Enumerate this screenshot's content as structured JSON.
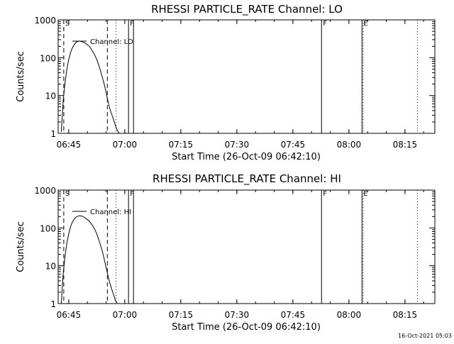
{
  "timestamp": "16-Oct-2021 05:03",
  "chart_data": [
    {
      "type": "line",
      "title": "RHESSI PARTICLE_RATE Channel: LO",
      "xlabel": "Start Time (26-Oct-09 06:42:10)",
      "ylabel": "Counts/sec",
      "y_scale": "log",
      "xlim": [
        "06:42:10",
        "08:23:00"
      ],
      "ylim": [
        1,
        1000
      ],
      "x_ticks": [
        "06:45",
        "07:00",
        "07:15",
        "07:30",
        "07:45",
        "08:00",
        "08:15"
      ],
      "y_ticks": [
        "1",
        "10",
        "100",
        "1000"
      ],
      "legend": "Channel: LO",
      "series": [
        {
          "name": "Channel: LO",
          "x": [
            "06:43:00",
            "06:43:30",
            "06:44:00",
            "06:44:30",
            "06:45:00",
            "06:45:30",
            "06:46:00",
            "06:46:30",
            "06:47:00",
            "06:47:30",
            "06:48:00",
            "06:48:30",
            "06:49:00",
            "06:49:30",
            "06:50:00",
            "06:50:30",
            "06:51:00",
            "06:51:30",
            "06:52:00",
            "06:52:30",
            "06:53:00",
            "06:53:30",
            "06:54:00",
            "06:54:30",
            "06:55:00",
            "06:55:30",
            "06:56:00",
            "06:56:30",
            "06:57:00",
            "06:57:30",
            "06:58:00",
            "06:58:30"
          ],
          "y": [
            1.1,
            7,
            22,
            50,
            90,
            140,
            185,
            225,
            255,
            270,
            275,
            265,
            255,
            240,
            220,
            200,
            170,
            140,
            115,
            90,
            65,
            45,
            30,
            20,
            12,
            7,
            4.5,
            3.2,
            2.3,
            1.6,
            1.2,
            1.0
          ]
        }
      ],
      "markers": [
        {
          "time": "06:43:40",
          "style": "dashed",
          "label": "S"
        },
        {
          "time": "06:55:20",
          "style": "dashed",
          "label": ""
        },
        {
          "time": "06:57:40",
          "style": "dotted",
          "label": ""
        },
        {
          "time": "07:01:00",
          "style": "solid",
          "label": "F"
        },
        {
          "time": "07:02:20",
          "style": "solid",
          "label": ""
        },
        {
          "time": "07:52:40",
          "style": "solid",
          "label": "F"
        },
        {
          "time": "08:03:30",
          "style": "solid",
          "label": "E"
        },
        {
          "time": "08:03:50",
          "style": "dotted",
          "label": ""
        },
        {
          "time": "08:18:20",
          "style": "dotted",
          "label": ""
        }
      ]
    },
    {
      "type": "line",
      "title": "RHESSI PARTICLE_RATE Channel: HI",
      "xlabel": "Start Time (26-Oct-09 06:42:10)",
      "ylabel": "Counts/sec",
      "y_scale": "log",
      "xlim": [
        "06:42:10",
        "08:23:00"
      ],
      "ylim": [
        1,
        1000
      ],
      "x_ticks": [
        "06:45",
        "07:00",
        "07:15",
        "07:30",
        "07:45",
        "08:00",
        "08:15"
      ],
      "y_ticks": [
        "1",
        "10",
        "100",
        "1000"
      ],
      "legend": "Channel: HI",
      "series": [
        {
          "name": "Channel: HI",
          "x": [
            "06:43:00",
            "06:43:30",
            "06:44:00",
            "06:44:30",
            "06:45:00",
            "06:45:30",
            "06:46:00",
            "06:46:30",
            "06:47:00",
            "06:47:30",
            "06:48:00",
            "06:48:30",
            "06:49:00",
            "06:49:30",
            "06:50:00",
            "06:50:30",
            "06:51:00",
            "06:51:30",
            "06:52:00",
            "06:52:30",
            "06:53:00",
            "06:53:30",
            "06:54:00",
            "06:54:30",
            "06:55:00",
            "06:55:30",
            "06:56:00",
            "06:56:30",
            "06:57:00",
            "06:57:30",
            "06:58:00"
          ],
          "y": [
            1.0,
            6,
            18,
            40,
            70,
            110,
            145,
            175,
            195,
            205,
            210,
            205,
            195,
            180,
            165,
            150,
            130,
            110,
            90,
            70,
            50,
            35,
            24,
            15,
            9,
            5.5,
            3.5,
            2.4,
            1.7,
            1.2,
            1.0
          ]
        }
      ],
      "markers": [
        {
          "time": "06:43:40",
          "style": "dashed",
          "label": "S"
        },
        {
          "time": "06:55:20",
          "style": "dashed",
          "label": ""
        },
        {
          "time": "06:57:40",
          "style": "dotted",
          "label": ""
        },
        {
          "time": "07:01:00",
          "style": "solid",
          "label": "F"
        },
        {
          "time": "07:02:20",
          "style": "solid",
          "label": ""
        },
        {
          "time": "07:52:40",
          "style": "solid",
          "label": "F"
        },
        {
          "time": "08:03:30",
          "style": "solid",
          "label": "E"
        },
        {
          "time": "08:03:50",
          "style": "dotted",
          "label": ""
        },
        {
          "time": "08:18:20",
          "style": "dotted",
          "label": ""
        }
      ]
    }
  ]
}
